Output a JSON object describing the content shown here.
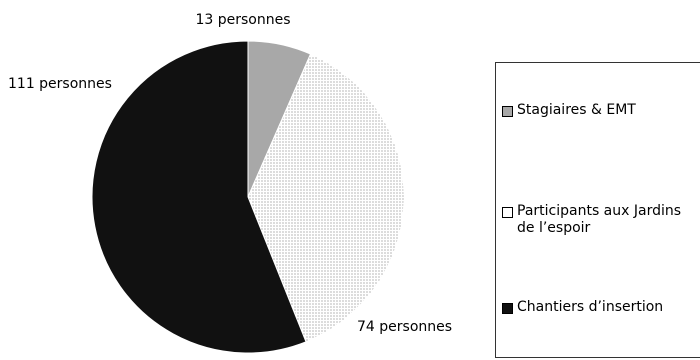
{
  "chart_data": {
    "type": "pie",
    "title": "",
    "slices": [
      {
        "name": "Stagiaires & EMT",
        "value": 13,
        "label": "13 personnes",
        "color": "#a8a8a8",
        "fill": "solid"
      },
      {
        "name": "Participants aux Jardins de l’espoir",
        "value": 74,
        "label": "74 personnes",
        "color": "#ffffff",
        "fill": "dotted"
      },
      {
        "name": "Chantiers d’insertion",
        "value": 111,
        "label": "111 personnes",
        "color": "#111111",
        "fill": "solid"
      }
    ],
    "legend_position": "right",
    "start_angle": "top",
    "direction": "clockwise"
  },
  "legend": {
    "items": [
      {
        "text": "Stagiaires & EMT"
      },
      {
        "text": "Participants aux Jardins\nde l’espoir"
      },
      {
        "text": "Chantiers d’insertion"
      }
    ]
  }
}
